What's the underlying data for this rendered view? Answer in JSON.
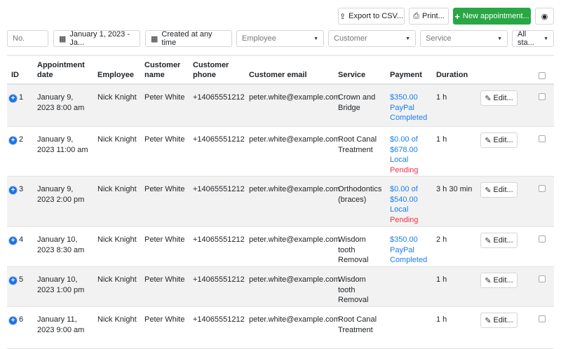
{
  "toolbar": {
    "export": "Export to CSV...",
    "print": "Print...",
    "new": "New appointment...",
    "accent": "#28a745"
  },
  "filters": {
    "number_placeholder": "No.",
    "date_range": "January 1, 2023 - Ja...",
    "created": "Created at any time",
    "employee": "Employee",
    "customer": "Customer",
    "service": "Service",
    "status": "All sta..."
  },
  "columns": {
    "id": "ID",
    "date": "Appointment date",
    "employee": "Employee",
    "name": "Customer name",
    "phone": "Customer phone",
    "email": "Customer email",
    "service": "Service",
    "payment": "Payment",
    "duration": "Duration"
  },
  "edit_label": "Edit...",
  "rows": [
    {
      "id": "1",
      "date": "January 9, 2023 8:00 am",
      "employee": "Nick Knight",
      "name": "Peter White",
      "phone": "+14065551212",
      "email": "peter.white@example.com",
      "service": "Crown and Bridge",
      "payment": [
        "$350.00",
        "PayPal"
      ],
      "status": "Completed",
      "duration": "1 h"
    },
    {
      "id": "2",
      "date": "January 9, 2023 11:00 am",
      "employee": "Nick Knight",
      "name": "Peter White",
      "phone": "+14065551212",
      "email": "peter.white@example.com",
      "service": "Root Canal Treatment",
      "payment": [
        "$0.00 of",
        "$678.00",
        "Local"
      ],
      "status": "Pending",
      "duration": "1 h"
    },
    {
      "id": "3",
      "date": "January 9, 2023 2:00 pm",
      "employee": "Nick Knight",
      "name": "Peter White",
      "phone": "+14065551212",
      "email": "peter.white@example.com",
      "service": "Orthodontics (braces)",
      "payment": [
        "$0.00 of",
        "$540.00",
        "Local"
      ],
      "status": "Pending",
      "duration": "3 h 30 min"
    },
    {
      "id": "4",
      "date": "January 10, 2023 8:30 am",
      "employee": "Nick Knight",
      "name": "Peter White",
      "phone": "+14065551212",
      "email": "peter.white@example.com",
      "service": "Wisdom tooth Removal",
      "payment": [
        "$350.00",
        "PayPal"
      ],
      "status": "Completed",
      "duration": "2 h"
    },
    {
      "id": "5",
      "date": "January 10, 2023 1:00 pm",
      "employee": "Nick Knight",
      "name": "Peter White",
      "phone": "+14065551212",
      "email": "peter.white@example.com",
      "service": "Wisdom tooth Removal",
      "payment": [],
      "status": "",
      "duration": "1 h"
    },
    {
      "id": "6",
      "date": "January 11, 2023 9:00 am",
      "employee": "Nick Knight",
      "name": "Peter White",
      "phone": "+14065551212",
      "email": "peter.white@example.com",
      "service": "Root Canal Treatment",
      "payment": [],
      "status": "",
      "duration": "1 h"
    }
  ]
}
